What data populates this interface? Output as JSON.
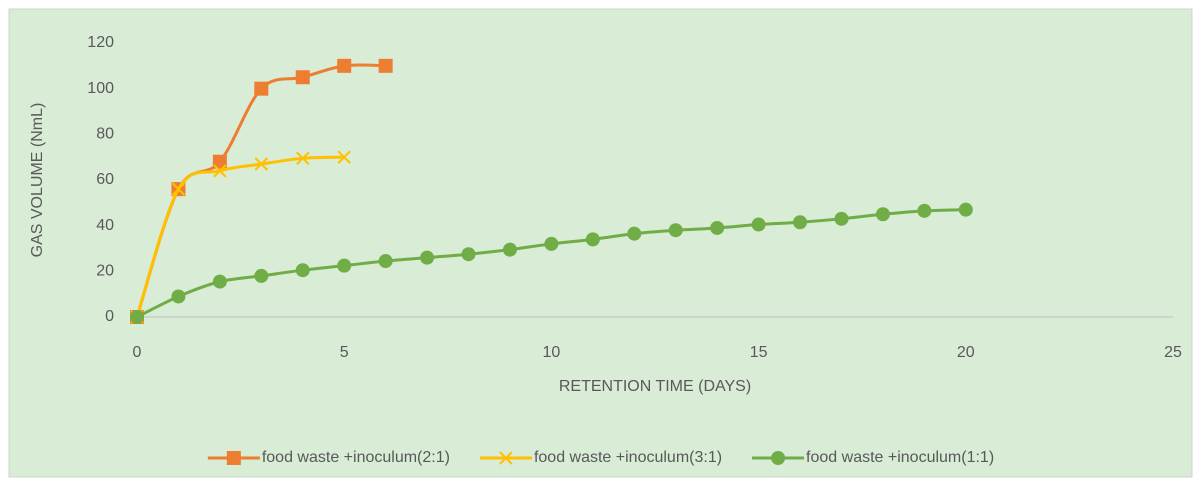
{
  "chart_data": {
    "type": "scatter-line",
    "x_label": "RETENTION TIME (DAYS)",
    "y_label": "GAS VOLUME (NmL)",
    "xlim": [
      0,
      25
    ],
    "xticks": [
      0,
      5,
      10,
      15,
      20,
      25
    ],
    "ylim": [
      0,
      120
    ],
    "yticks": [
      0,
      20,
      40,
      60,
      80,
      100,
      120
    ],
    "grid": false,
    "smooth": true,
    "legend": "bottom",
    "series": [
      {
        "name": "food waste +inoculum(2:1)",
        "color": "#ed7d31",
        "marker": "square",
        "x": [
          0,
          1,
          2,
          3,
          4,
          5,
          6
        ],
        "values": [
          0,
          56,
          68,
          100,
          105,
          110,
          110
        ]
      },
      {
        "name": "food waste +inoculum(3:1)",
        "color": "#ffc000",
        "marker": "x",
        "x": [
          0,
          1,
          2,
          3,
          4,
          5
        ],
        "values": [
          0,
          56,
          64,
          67,
          69.5,
          70
        ]
      },
      {
        "name": "food waste +inoculum(1:1)",
        "color": "#70ad47",
        "marker": "circle",
        "x": [
          0,
          1,
          2,
          3,
          4,
          5,
          6,
          7,
          8,
          9,
          10,
          11,
          12,
          13,
          14,
          15,
          16,
          17,
          18,
          19,
          20
        ],
        "values": [
          0,
          9,
          15.5,
          18,
          20.5,
          22.5,
          24.5,
          26,
          27.5,
          29.5,
          32,
          34,
          36.5,
          38,
          39,
          40.5,
          41.5,
          43,
          45,
          46.5,
          47
        ]
      }
    ]
  }
}
